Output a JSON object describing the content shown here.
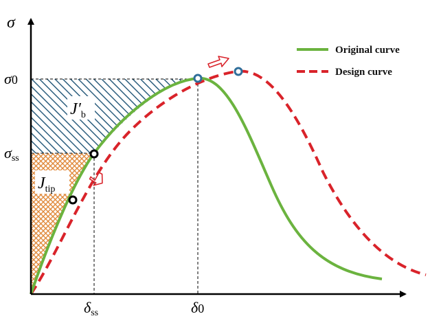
{
  "axes": {
    "y_symbol": "σ",
    "x_symbol": "",
    "y_ticks": [
      {
        "main": "σ",
        "sub": "0",
        "sub_style": "inline"
      },
      {
        "main": "σ",
        "sub": "ss",
        "sub_style": "subscript"
      }
    ],
    "x_ticks": [
      {
        "main": "δ",
        "sub": "ss",
        "sub_style": "subscript"
      },
      {
        "main": "δ",
        "sub": "0",
        "sub_style": "inline"
      }
    ]
  },
  "regions": {
    "upper": {
      "main": "J′",
      "sub": "b"
    },
    "lower": {
      "main": "J",
      "sub": "tip"
    }
  },
  "legend": {
    "position": "top-right",
    "items": [
      {
        "label": "Original curve",
        "color": "#6bb33f",
        "style": "solid"
      },
      {
        "label": "Design curve",
        "color": "#d9232a",
        "style": "dashed"
      }
    ]
  },
  "colors": {
    "original_curve": "#6bb33f",
    "design_curve": "#d9232a",
    "hatch_upper": "#2d5f7f",
    "hatch_lower": "#e08a3c",
    "marker_blue": "#2f6e9a",
    "marker_black": "#000000",
    "arrow_outline": "#d9232a"
  },
  "markers": [
    {
      "name": "peak-original-marker",
      "color": "marker_blue"
    },
    {
      "name": "peak-design-marker",
      "color": "marker_blue"
    },
    {
      "name": "sigma-ss-marker",
      "color": "marker_black"
    },
    {
      "name": "tip-marker",
      "color": "marker_black"
    }
  ],
  "arrows": [
    {
      "name": "shift-right-arrow",
      "meaning": "peak shifts right"
    },
    {
      "name": "shift-down-arrow",
      "meaning": "curve shifts down"
    }
  ]
}
